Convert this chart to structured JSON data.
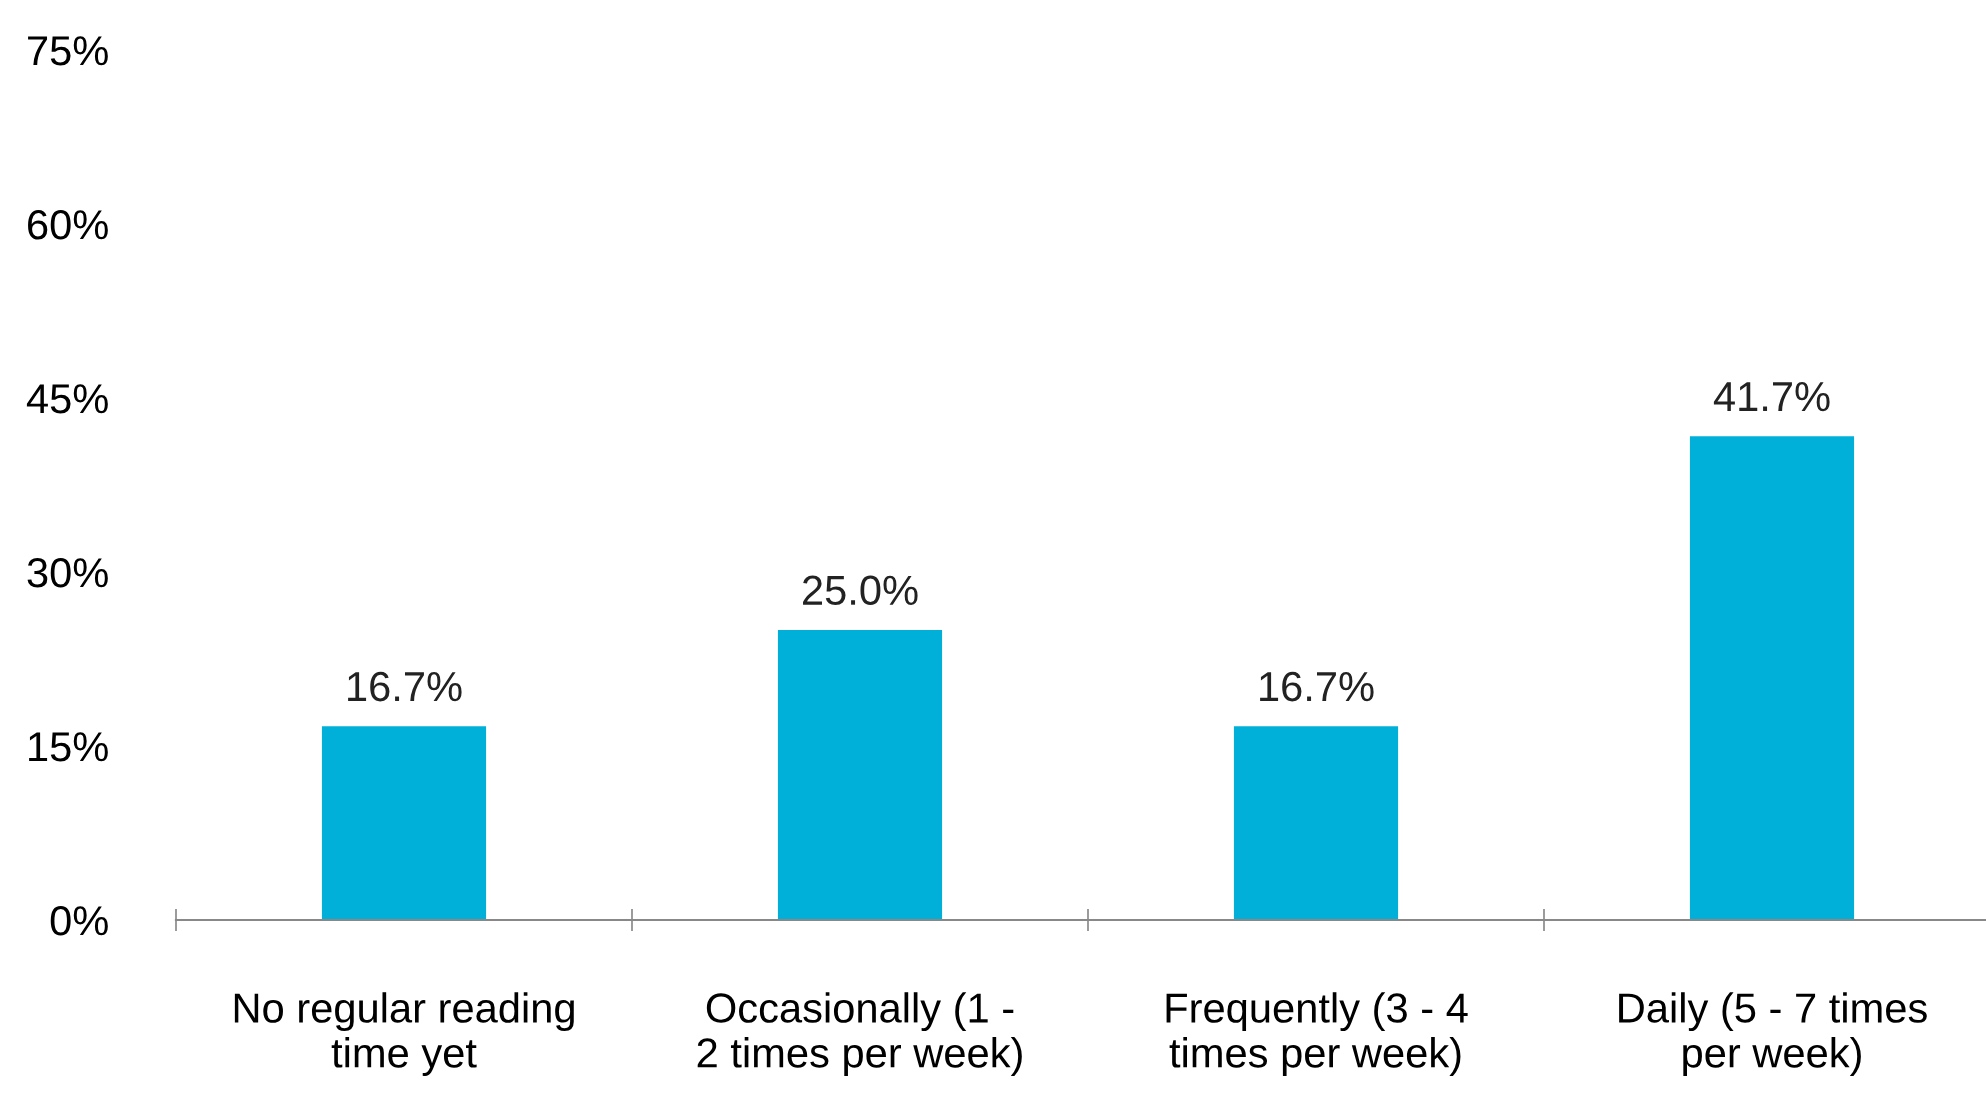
{
  "chart_data": {
    "type": "bar",
    "categories": [
      "No regular reading\ntime yet",
      "Occasionally (1 -\n2 times per week)",
      "Frequently (3 - 4\ntimes per week)",
      "Daily (5 - 7 times\nper week)"
    ],
    "values": [
      16.7,
      25.0,
      16.7,
      41.7
    ],
    "value_labels": [
      "16.7%",
      "25.0%",
      "16.7%",
      "41.7%"
    ],
    "color": "#00b0d8",
    "ylim": [
      0,
      75
    ],
    "yticks": [
      {
        "value": 0,
        "label": "0%"
      },
      {
        "value": 15,
        "label": "15%"
      },
      {
        "value": 30,
        "label": "30%"
      },
      {
        "value": 45,
        "label": "45%"
      },
      {
        "value": 60,
        "label": "60%"
      },
      {
        "value": 75,
        "label": "75%"
      }
    ],
    "grid": false,
    "legend": false
  }
}
